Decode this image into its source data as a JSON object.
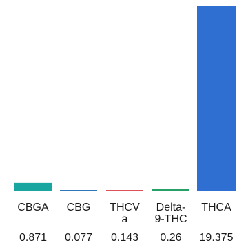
{
  "chart_data": {
    "type": "bar",
    "title": "",
    "xlabel": "",
    "ylabel": "",
    "categories": [
      [
        "CBGA"
      ],
      [
        "CBG"
      ],
      [
        "THCV",
        "a"
      ],
      [
        "Delta-",
        "9-THC"
      ],
      [
        "THCA"
      ]
    ],
    "values": [
      0.871,
      0.077,
      0.143,
      0.26,
      19.375
    ],
    "value_labels": [
      "0.871",
      "0.077",
      "0.143",
      "0.26",
      "19.375"
    ],
    "colors": [
      "#1aa6a0",
      "#2f77b8",
      "#e0505a",
      "#27a067",
      "#2f6fd1"
    ],
    "ylim": [
      0,
      19.375
    ],
    "grid": false,
    "legend": "none"
  }
}
